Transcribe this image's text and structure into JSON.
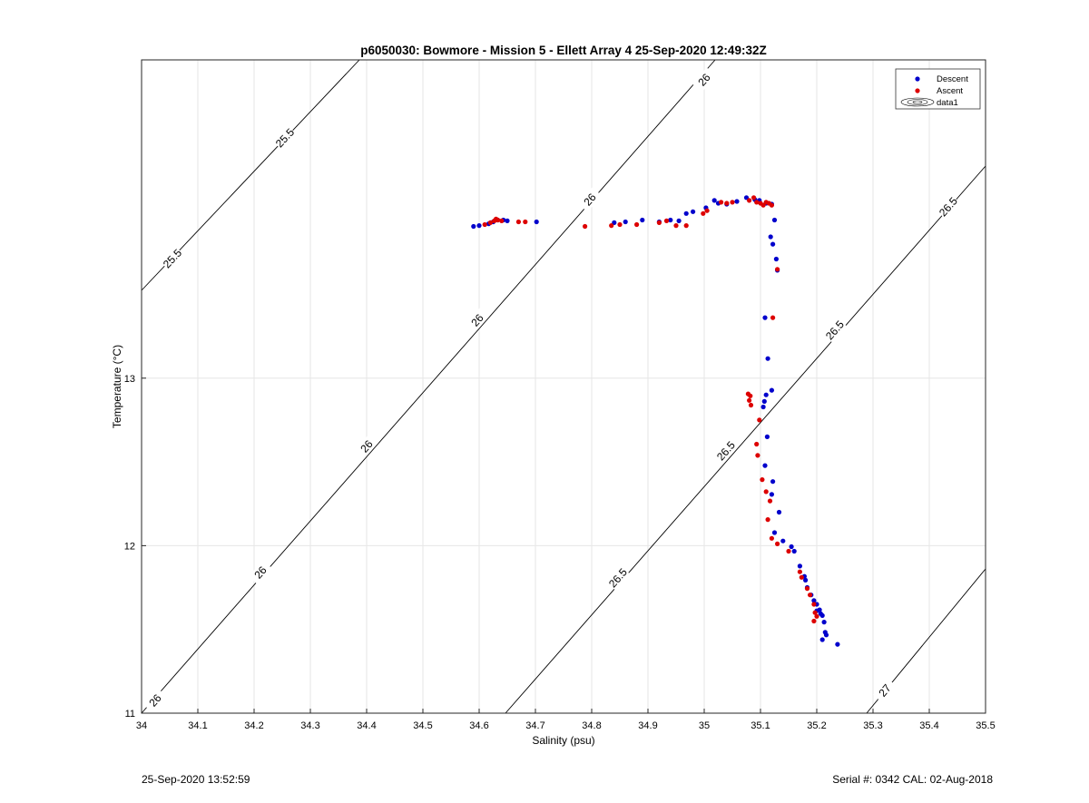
{
  "figure": {
    "footer_left": "25-Sep-2020 13:52:59",
    "footer_right": "Serial #: 0342  CAL: 02-Aug-2018"
  },
  "chart_data": {
    "type": "scatter",
    "title": "p6050030: Bowmore - Mission 5 - Ellett Array 4 25-Sep-2020 12:49:32Z",
    "xlabel": "Salinity (psu)",
    "ylabel": "Temperature (°C)",
    "xlim": [
      34,
      35.5
    ],
    "ylim": [
      11,
      14.9
    ],
    "grid": true,
    "legend_position": "top-right",
    "x_ticks": [
      "34",
      "34.1",
      "34.2",
      "34.3",
      "34.4",
      "34.5",
      "34.6",
      "34.7",
      "34.8",
      "34.9",
      "35",
      "35.1",
      "35.2",
      "35.3",
      "35.4",
      "35.5"
    ],
    "y_ticks": [
      "11",
      "12",
      "13"
    ],
    "legend": [
      "Descent",
      "Ascent",
      "data1"
    ],
    "series": [
      {
        "name": "Descent",
        "color": "#0000cc",
        "points": [
          [
            34.59,
            13.906
          ],
          [
            34.6,
            13.911
          ],
          [
            34.617,
            13.922
          ],
          [
            34.625,
            13.933
          ],
          [
            34.633,
            13.944
          ],
          [
            34.643,
            13.944
          ],
          [
            34.65,
            13.939
          ],
          [
            34.702,
            13.933
          ],
          [
            34.84,
            13.928
          ],
          [
            34.86,
            13.933
          ],
          [
            34.89,
            13.944
          ],
          [
            34.92,
            13.933
          ],
          [
            34.94,
            13.944
          ],
          [
            34.955,
            13.939
          ],
          [
            34.968,
            13.983
          ],
          [
            34.98,
            13.994
          ],
          [
            35.003,
            14.017
          ],
          [
            35.018,
            14.061
          ],
          [
            35.025,
            14.044
          ],
          [
            35.04,
            14.039
          ],
          [
            35.058,
            14.055
          ],
          [
            35.075,
            14.078
          ],
          [
            35.09,
            14.066
          ],
          [
            35.098,
            14.061
          ],
          [
            35.11,
            14.044
          ],
          [
            35.12,
            14.039
          ],
          [
            35.125,
            13.944
          ],
          [
            35.118,
            13.844
          ],
          [
            35.122,
            13.8
          ],
          [
            35.128,
            13.711
          ],
          [
            35.13,
            13.644
          ],
          [
            35.108,
            13.361
          ],
          [
            35.113,
            13.117
          ],
          [
            35.12,
            12.928
          ],
          [
            35.11,
            12.9
          ],
          [
            35.107,
            12.861
          ],
          [
            35.105,
            12.828
          ],
          [
            35.112,
            12.65
          ],
          [
            35.108,
            12.478
          ],
          [
            35.122,
            12.383
          ],
          [
            35.12,
            12.306
          ],
          [
            35.133,
            12.2
          ],
          [
            35.125,
            12.078
          ],
          [
            35.14,
            12.028
          ],
          [
            35.155,
            11.994
          ],
          [
            35.16,
            11.967
          ],
          [
            35.17,
            11.878
          ],
          [
            35.178,
            11.817
          ],
          [
            35.18,
            11.794
          ],
          [
            35.183,
            11.75
          ],
          [
            35.19,
            11.706
          ],
          [
            35.195,
            11.672
          ],
          [
            35.2,
            11.65
          ],
          [
            35.205,
            11.617
          ],
          [
            35.21,
            11.583
          ],
          [
            35.213,
            11.544
          ],
          [
            35.215,
            11.483
          ],
          [
            35.217,
            11.467
          ],
          [
            35.21,
            11.439
          ],
          [
            35.237,
            11.411
          ],
          [
            35.2,
            11.611
          ],
          [
            35.207,
            11.594
          ]
        ]
      },
      {
        "name": "Ascent",
        "color": "#dd0000",
        "points": [
          [
            34.61,
            13.917
          ],
          [
            34.62,
            13.928
          ],
          [
            34.627,
            13.939
          ],
          [
            34.633,
            13.944
          ],
          [
            34.64,
            13.939
          ],
          [
            34.63,
            13.95
          ],
          [
            34.67,
            13.933
          ],
          [
            34.682,
            13.933
          ],
          [
            34.788,
            13.906
          ],
          [
            34.835,
            13.911
          ],
          [
            34.85,
            13.917
          ],
          [
            34.88,
            13.917
          ],
          [
            34.92,
            13.928
          ],
          [
            34.933,
            13.939
          ],
          [
            34.95,
            13.911
          ],
          [
            34.968,
            13.911
          ],
          [
            34.998,
            13.983
          ],
          [
            35.005,
            14.0
          ],
          [
            35.03,
            14.05
          ],
          [
            35.04,
            14.044
          ],
          [
            35.05,
            14.05
          ],
          [
            35.08,
            14.061
          ],
          [
            35.088,
            14.078
          ],
          [
            35.093,
            14.05
          ],
          [
            35.1,
            14.044
          ],
          [
            35.105,
            14.033
          ],
          [
            35.11,
            14.05
          ],
          [
            35.115,
            14.044
          ],
          [
            35.12,
            14.033
          ],
          [
            35.13,
            13.65
          ],
          [
            35.122,
            13.361
          ],
          [
            35.078,
            12.906
          ],
          [
            35.082,
            12.894
          ],
          [
            35.08,
            12.867
          ],
          [
            35.083,
            12.839
          ],
          [
            35.098,
            12.75
          ],
          [
            35.093,
            12.606
          ],
          [
            35.095,
            12.539
          ],
          [
            35.103,
            12.394
          ],
          [
            35.11,
            12.322
          ],
          [
            35.117,
            12.267
          ],
          [
            35.113,
            12.156
          ],
          [
            35.12,
            12.044
          ],
          [
            35.13,
            12.011
          ],
          [
            35.15,
            11.967
          ],
          [
            35.17,
            11.844
          ],
          [
            35.173,
            11.811
          ],
          [
            35.183,
            11.744
          ],
          [
            35.188,
            11.706
          ],
          [
            35.195,
            11.65
          ],
          [
            35.197,
            11.6
          ],
          [
            35.2,
            11.578
          ],
          [
            35.195,
            11.55
          ]
        ]
      }
    ],
    "contours": [
      {
        "level": "25.5",
        "labels": [
          "25.5",
          "25.5"
        ]
      },
      {
        "level": "26",
        "labels": [
          "26",
          "26",
          "26",
          "26",
          "26",
          "26"
        ]
      },
      {
        "level": "26.5",
        "labels": [
          "26.5",
          "26.5",
          "26.5",
          "26.5",
          "26.5"
        ]
      },
      {
        "level": "27",
        "labels": [
          "27"
        ]
      }
    ]
  }
}
